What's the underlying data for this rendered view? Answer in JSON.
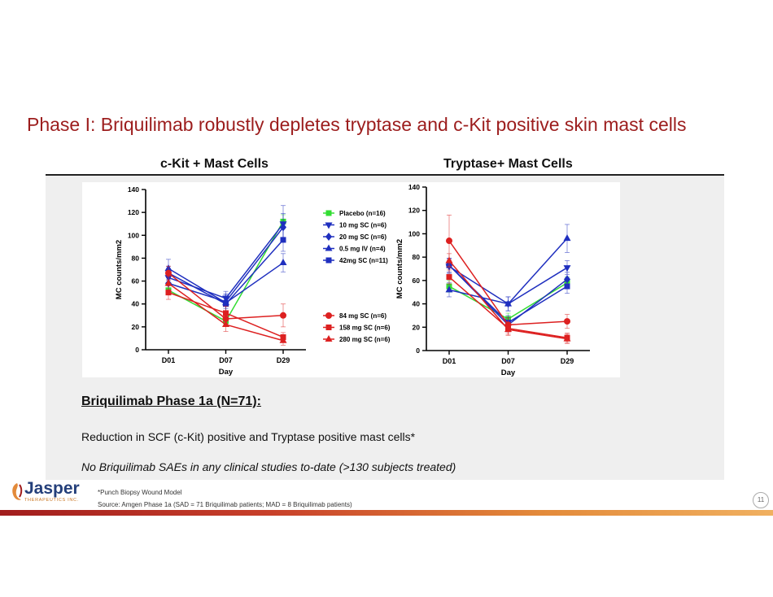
{
  "slide": {
    "title": "Phase I: Briquilimab robustly depletes tryptase and c-Kit positive skin mast cells",
    "panel_left_title": "c-Kit + Mast Cells",
    "panel_right_title": "Tryptase+ Mast Cells",
    "subheading": "Briquilimab Phase 1a (N=71):",
    "bullet1": "Reduction in SCF (c-Kit) positive and Tryptase positive mast cells*",
    "bullet2": "No Briquilimab SAEs in any clinical studies to-date (>130 subjects treated)",
    "footnote1": "*Punch Biopsy Wound Model",
    "footnote2": "Source: Amgen Phase 1a (SAD = 71 Briquilimab patients; MAD = 8 Briquilimab patients)",
    "logo_name": "Jasper",
    "logo_sub": "THERAPEUTICS INC.",
    "page_number": "11",
    "colors": {
      "title": "#9c1d1d",
      "logo": "#243f7a",
      "accent": "#e38a3a"
    }
  },
  "chart_data": [
    {
      "type": "line",
      "title": "c-Kit + Mast Cells",
      "xlabel": "Day",
      "ylabel": "MC counts/mm2",
      "categories": [
        "D01",
        "D07",
        "D29"
      ],
      "ylim": [
        0,
        140
      ],
      "yticks": [
        "0",
        "20",
        "40",
        "60",
        "80",
        "100",
        "120",
        "140"
      ],
      "series": [
        {
          "name": "Placebo (n=16)",
          "color": "#33dd33",
          "marker": "square",
          "values": [
            52,
            25,
            112
          ],
          "err": [
            4,
            4,
            6
          ]
        },
        {
          "name": "10 mg SC (n=6)",
          "color": "#1f2fbf",
          "marker": "tri-down",
          "values": [
            63,
            45,
            110
          ],
          "err": [
            7,
            6,
            16
          ]
        },
        {
          "name": "20 mg SC (n=6)",
          "color": "#1f2fbf",
          "marker": "diamond",
          "values": [
            58,
            42,
            107
          ],
          "err": [
            6,
            6,
            12
          ]
        },
        {
          "name": "0.5 mg IV (n=4)",
          "color": "#1f2fbf",
          "marker": "tri-up",
          "values": [
            71,
            41,
            76
          ],
          "err": [
            8,
            8,
            8
          ]
        },
        {
          "name": "42mg SC (n=11)",
          "color": "#1f2fbf",
          "marker": "square",
          "values": [
            67,
            40,
            96
          ],
          "err": [
            6,
            7,
            10
          ]
        },
        {
          "name": "84 mg SC (n=6)",
          "color": "#dd2020",
          "marker": "circle",
          "values": [
            67,
            27,
            30
          ],
          "err": [
            6,
            6,
            10
          ]
        },
        {
          "name": "158 mg SC (n=6)",
          "color": "#dd2020",
          "marker": "square",
          "values": [
            50,
            32,
            11
          ],
          "err": [
            6,
            6,
            4
          ]
        },
        {
          "name": "280 mg SC (n=6)",
          "color": "#dd2020",
          "marker": "tri-up",
          "values": [
            58,
            22,
            8
          ],
          "err": [
            6,
            6,
            4
          ]
        }
      ]
    },
    {
      "type": "line",
      "title": "Tryptase+ Mast Cells",
      "xlabel": "Day",
      "ylabel": "MC counts/mm2",
      "categories": [
        "D01",
        "D07",
        "D29"
      ],
      "ylim": [
        0,
        140
      ],
      "yticks": [
        "0",
        "20",
        "40",
        "60",
        "80",
        "100",
        "120",
        "140"
      ],
      "series": [
        {
          "name": "Placebo (n=16)",
          "color": "#33dd33",
          "marker": "square",
          "values": [
            55,
            27,
            58
          ],
          "err": [
            5,
            5,
            5
          ]
        },
        {
          "name": "10 mg SC (n=6)",
          "color": "#1f2fbf",
          "marker": "tri-down",
          "values": [
            72,
            40,
            71
          ],
          "err": [
            6,
            6,
            6
          ]
        },
        {
          "name": "20 mg SC (n=6)",
          "color": "#1f2fbf",
          "marker": "diamond",
          "values": [
            73,
            22,
            61
          ],
          "err": [
            6,
            6,
            6
          ]
        },
        {
          "name": "0.5 mg IV (n=4)",
          "color": "#1f2fbf",
          "marker": "tri-up",
          "values": [
            52,
            40,
            96
          ],
          "err": [
            6,
            6,
            12
          ]
        },
        {
          "name": "42mg SC (n=11)",
          "color": "#1f2fbf",
          "marker": "square",
          "values": [
            73,
            24,
            55
          ],
          "err": [
            6,
            6,
            6
          ]
        },
        {
          "name": "84 mg SC (n=6)",
          "color": "#dd2020",
          "marker": "circle",
          "values": [
            94,
            22,
            25
          ],
          "err": [
            22,
            6,
            6
          ]
        },
        {
          "name": "158 mg SC (n=6)",
          "color": "#dd2020",
          "marker": "square",
          "values": [
            63,
            19,
            11
          ],
          "err": [
            6,
            5,
            4
          ]
        },
        {
          "name": "280 mg SC (n=6)",
          "color": "#dd2020",
          "marker": "tri-up",
          "values": [
            77,
            18,
            10
          ],
          "err": [
            6,
            5,
            4
          ]
        }
      ]
    }
  ]
}
